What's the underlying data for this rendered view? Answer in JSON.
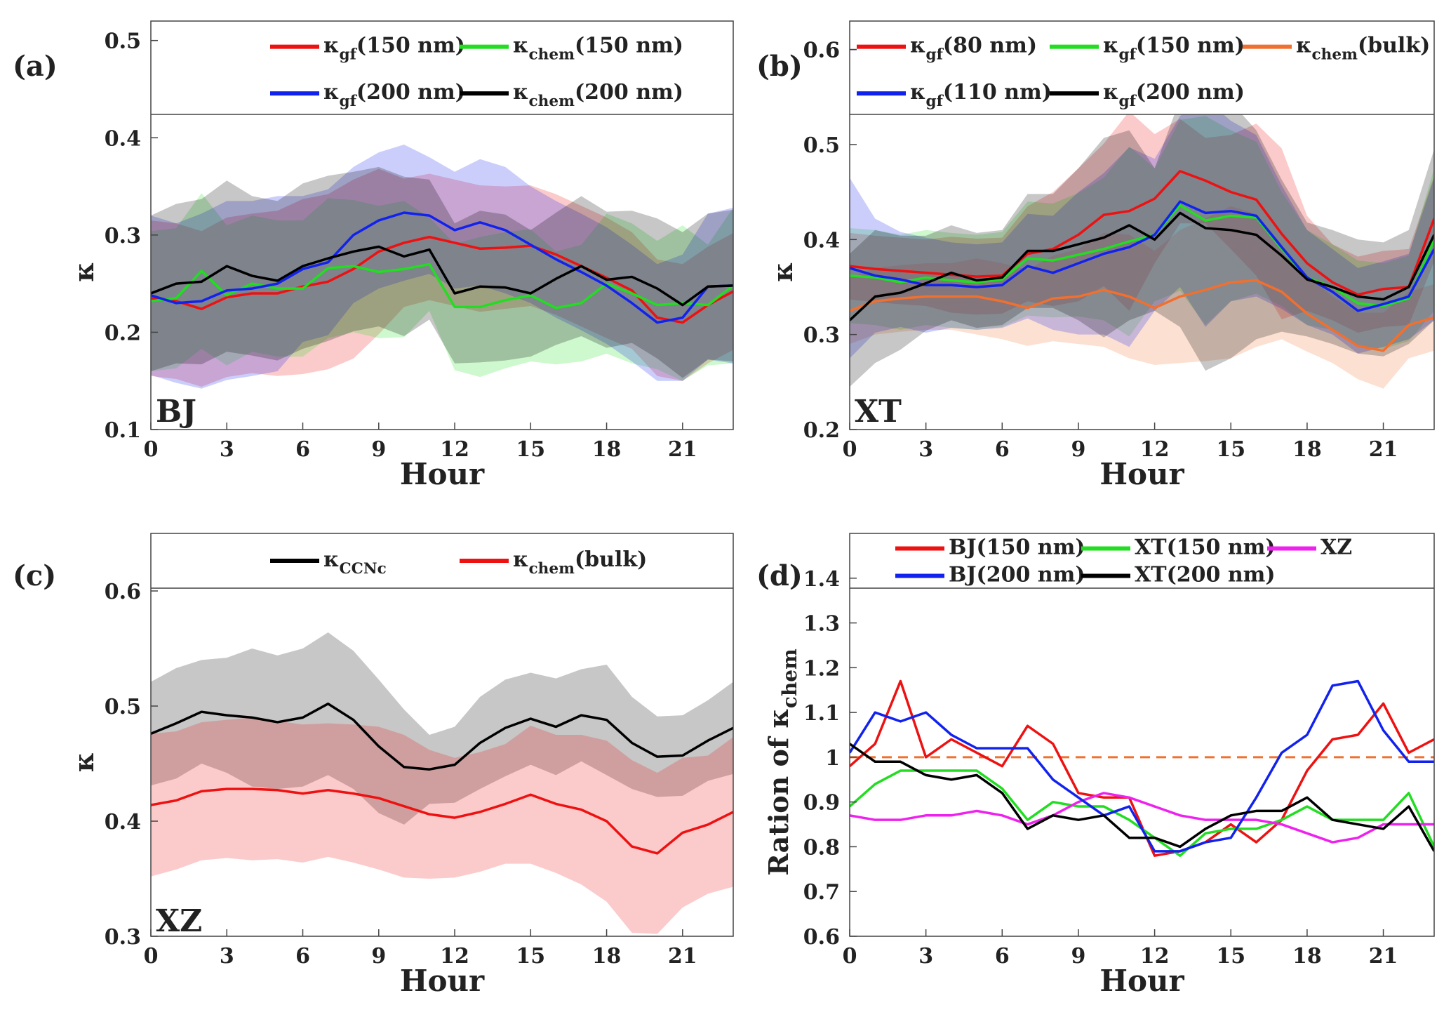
{
  "chart_data": [
    {
      "id": "a",
      "panel_label": "(a)",
      "site_label": "BJ",
      "type": "line",
      "xlabel": "Hour",
      "ylabel": "κ",
      "xlim": [
        0,
        23
      ],
      "ylim": [
        0.1,
        0.52
      ],
      "xticks": [
        0,
        3,
        6,
        9,
        12,
        15,
        18,
        21
      ],
      "yticks": [
        0.1,
        0.2,
        0.3,
        0.4,
        0.5
      ],
      "legend_ticks": [
        0.5
      ],
      "x": [
        0,
        1,
        2,
        3,
        4,
        5,
        6,
        7,
        8,
        9,
        10,
        11,
        12,
        13,
        14,
        15,
        16,
        17,
        18,
        19,
        20,
        21,
        22,
        23
      ],
      "series": [
        {
          "name_base": "κ",
          "name_sub": "gf",
          "name_rest": "(150 nm)",
          "color": "#ee1111",
          "values": [
            0.235,
            0.232,
            0.224,
            0.236,
            0.24,
            0.24,
            0.247,
            0.252,
            0.265,
            0.283,
            0.292,
            0.298,
            0.292,
            0.286,
            0.287,
            0.289,
            0.28,
            0.268,
            0.256,
            0.243,
            0.215,
            0.21,
            0.228,
            0.242
          ],
          "band": [
            0.08,
            0.08,
            0.08,
            0.082,
            0.082,
            0.085,
            0.09,
            0.09,
            0.092,
            0.085,
            0.066,
            0.065,
            0.065,
            0.065,
            0.063,
            0.062,
            0.062,
            0.062,
            0.062,
            0.06,
            0.06,
            0.06,
            0.06,
            0.06
          ]
        },
        {
          "name_base": "κ",
          "name_sub": "chem",
          "name_rest": "(150 nm)",
          "color": "#22dd22",
          "values": [
            0.232,
            0.235,
            0.263,
            0.238,
            0.25,
            0.245,
            0.245,
            0.266,
            0.268,
            0.262,
            0.265,
            0.27,
            0.226,
            0.226,
            0.233,
            0.238,
            0.225,
            0.23,
            0.25,
            0.24,
            0.228,
            0.23,
            0.228,
            0.248
          ],
          "band": [
            0.072,
            0.072,
            0.08,
            0.072,
            0.07,
            0.07,
            0.07,
            0.072,
            0.068,
            0.068,
            0.07,
            0.048,
            0.065,
            0.072,
            0.07,
            0.068,
            0.058,
            0.06,
            0.072,
            0.072,
            0.066,
            0.08,
            0.062,
            0.08
          ]
        },
        {
          "name_base": "κ",
          "name_sub": "gf",
          "name_rest": "(200 nm)",
          "color": "#1122ee",
          "values": [
            0.238,
            0.23,
            0.232,
            0.243,
            0.245,
            0.25,
            0.265,
            0.272,
            0.3,
            0.315,
            0.323,
            0.32,
            0.305,
            0.313,
            0.305,
            0.29,
            0.275,
            0.262,
            0.248,
            0.23,
            0.21,
            0.215,
            0.247,
            0.248
          ],
          "band": [
            0.082,
            0.082,
            0.09,
            0.092,
            0.09,
            0.09,
            0.075,
            0.075,
            0.07,
            0.07,
            0.07,
            0.06,
            0.06,
            0.065,
            0.065,
            0.06,
            0.06,
            0.06,
            0.06,
            0.06,
            0.06,
            0.065,
            0.075,
            0.08
          ]
        },
        {
          "name_base": "κ",
          "name_sub": "chem",
          "name_rest": "(200 nm)",
          "color": "#000000",
          "values": [
            0.24,
            0.25,
            0.252,
            0.268,
            0.258,
            0.253,
            0.268,
            0.276,
            0.283,
            0.288,
            0.278,
            0.285,
            0.24,
            0.247,
            0.246,
            0.24,
            0.255,
            0.268,
            0.254,
            0.257,
            0.245,
            0.228,
            0.247,
            0.248
          ],
          "band": [
            0.08,
            0.082,
            0.085,
            0.088,
            0.082,
            0.082,
            0.085,
            0.085,
            0.082,
            0.082,
            0.082,
            0.072,
            0.072,
            0.078,
            0.075,
            0.065,
            0.068,
            0.072,
            0.07,
            0.068,
            0.072,
            0.075,
            0.075,
            0.078
          ]
        }
      ],
      "legend_rows": [
        [
          0,
          1
        ],
        [
          2,
          3
        ]
      ]
    },
    {
      "id": "b",
      "panel_label": "(b)",
      "site_label": "XT",
      "type": "line",
      "xlabel": "Hour",
      "ylabel": "κ",
      "xlim": [
        0,
        23
      ],
      "ylim": [
        0.2,
        0.63
      ],
      "xticks": [
        0,
        3,
        6,
        9,
        12,
        15,
        18,
        21
      ],
      "yticks": [
        0.2,
        0.3,
        0.4,
        0.5,
        0.6
      ],
      "legend_ticks": [
        0.6
      ],
      "x": [
        0,
        1,
        2,
        3,
        4,
        5,
        6,
        7,
        8,
        9,
        10,
        11,
        12,
        13,
        14,
        15,
        16,
        17,
        18,
        19,
        20,
        21,
        22,
        23
      ],
      "series": [
        {
          "name_base": "κ",
          "name_sub": "gf",
          "name_rest": "(80 nm)",
          "color": "#ee1111",
          "values": [
            0.372,
            0.369,
            0.367,
            0.365,
            0.363,
            0.361,
            0.362,
            0.385,
            0.39,
            0.405,
            0.426,
            0.43,
            0.443,
            0.472,
            0.462,
            0.45,
            0.442,
            0.406,
            0.375,
            0.355,
            0.342,
            0.348,
            0.35,
            0.422
          ],
          "band": [
            0.035,
            0.035,
            0.035,
            0.035,
            0.04,
            0.04,
            0.04,
            0.05,
            0.06,
            0.07,
            0.075,
            0.105,
            0.068,
            0.055,
            0.045,
            0.06,
            0.08,
            0.09,
            0.05,
            0.04,
            0.04,
            0.04,
            0.04,
            0.045
          ]
        },
        {
          "name_base": "κ",
          "name_sub": "gf",
          "name_rest": "(150 nm)",
          "color": "#22dd22",
          "values": [
            0.362,
            0.36,
            0.355,
            0.36,
            0.357,
            0.355,
            0.358,
            0.38,
            0.378,
            0.384,
            0.39,
            0.398,
            0.405,
            0.436,
            0.42,
            0.425,
            0.423,
            0.39,
            0.36,
            0.35,
            0.333,
            0.33,
            0.338,
            0.4
          ],
          "band": [
            0.05,
            0.05,
            0.05,
            0.05,
            0.05,
            0.05,
            0.05,
            0.06,
            0.06,
            0.065,
            0.075,
            0.1,
            0.07,
            0.09,
            0.11,
            0.09,
            0.08,
            0.06,
            0.05,
            0.045,
            0.045,
            0.045,
            0.045,
            0.075
          ]
        },
        {
          "name_base": "κ",
          "name_sub": "chem",
          "name_rest": "(bulk)",
          "color": "#f07030",
          "values": [
            0.325,
            0.335,
            0.338,
            0.34,
            0.34,
            0.34,
            0.335,
            0.328,
            0.338,
            0.34,
            0.347,
            0.34,
            0.328,
            0.34,
            0.347,
            0.355,
            0.357,
            0.345,
            0.322,
            0.305,
            0.288,
            0.283,
            0.31,
            0.318
          ],
          "band": [
            0.035,
            0.035,
            0.035,
            0.035,
            0.035,
            0.04,
            0.04,
            0.04,
            0.045,
            0.05,
            0.06,
            0.065,
            0.06,
            0.07,
            0.075,
            0.08,
            0.07,
            0.05,
            0.04,
            0.035,
            0.035,
            0.04,
            0.035,
            0.035
          ]
        },
        {
          "name_base": "κ",
          "name_sub": "gf",
          "name_rest": "(110 nm)",
          "color": "#1122ee",
          "values": [
            0.37,
            0.362,
            0.358,
            0.352,
            0.352,
            0.35,
            0.352,
            0.372,
            0.365,
            0.375,
            0.385,
            0.392,
            0.405,
            0.44,
            0.428,
            0.43,
            0.425,
            0.392,
            0.36,
            0.345,
            0.325,
            0.332,
            0.34,
            0.39
          ],
          "band": [
            0.095,
            0.06,
            0.05,
            0.05,
            0.045,
            0.045,
            0.045,
            0.055,
            0.06,
            0.075,
            0.085,
            0.105,
            0.08,
            0.09,
            0.12,
            0.095,
            0.085,
            0.065,
            0.05,
            0.045,
            0.045,
            0.045,
            0.045,
            0.075
          ]
        },
        {
          "name_base": "κ",
          "name_sub": "gf",
          "name_rest": "(200 nm)",
          "color": "#000000",
          "values": [
            0.315,
            0.34,
            0.344,
            0.354,
            0.365,
            0.357,
            0.36,
            0.388,
            0.388,
            0.395,
            0.402,
            0.415,
            0.4,
            0.428,
            0.412,
            0.41,
            0.405,
            0.383,
            0.358,
            0.35,
            0.34,
            0.337,
            0.35,
            0.405
          ],
          "band": [
            0.07,
            0.07,
            0.06,
            0.05,
            0.05,
            0.05,
            0.05,
            0.06,
            0.06,
            0.08,
            0.105,
            0.1,
            0.075,
            0.12,
            0.15,
            0.135,
            0.11,
            0.08,
            0.06,
            0.06,
            0.06,
            0.06,
            0.06,
            0.09
          ]
        }
      ],
      "legend_rows": [
        [
          0,
          1,
          2
        ],
        [
          3,
          4
        ]
      ]
    },
    {
      "id": "c",
      "panel_label": "(c)",
      "site_label": "XZ",
      "type": "line",
      "xlabel": "Hour",
      "ylabel": "κ",
      "xlim": [
        0,
        23
      ],
      "ylim": [
        0.3,
        0.65
      ],
      "xticks": [
        0,
        3,
        6,
        9,
        12,
        15,
        18,
        21
      ],
      "yticks": [
        0.3,
        0.4,
        0.5,
        0.6
      ],
      "legend_ticks": [],
      "x": [
        0,
        1,
        2,
        3,
        4,
        5,
        6,
        7,
        8,
        9,
        10,
        11,
        12,
        13,
        14,
        15,
        16,
        17,
        18,
        19,
        20,
        21,
        22,
        23
      ],
      "series": [
        {
          "name_base": "κ",
          "name_sub": "CCNc",
          "name_rest": "",
          "color": "#000000",
          "values": [
            0.476,
            0.485,
            0.495,
            0.492,
            0.49,
            0.486,
            0.49,
            0.502,
            0.488,
            0.465,
            0.447,
            0.445,
            0.449,
            0.468,
            0.481,
            0.489,
            0.482,
            0.492,
            0.488,
            0.468,
            0.456,
            0.457,
            0.47,
            0.481
          ],
          "band": [
            0.045,
            0.048,
            0.045,
            0.05,
            0.06,
            0.058,
            0.06,
            0.062,
            0.06,
            0.058,
            0.05,
            0.03,
            0.033,
            0.04,
            0.042,
            0.04,
            0.042,
            0.04,
            0.048,
            0.04,
            0.035,
            0.035,
            0.035,
            0.04
          ]
        },
        {
          "name_base": "κ",
          "name_sub": "chem",
          "name_rest": "(bulk)",
          "color": "#ee1111",
          "values": [
            0.414,
            0.418,
            0.426,
            0.428,
            0.428,
            0.427,
            0.424,
            0.427,
            0.424,
            0.42,
            0.413,
            0.406,
            0.403,
            0.408,
            0.415,
            0.423,
            0.415,
            0.41,
            0.4,
            0.378,
            0.372,
            0.39,
            0.397,
            0.408
          ],
          "band": [
            0.062,
            0.06,
            0.06,
            0.06,
            0.062,
            0.06,
            0.06,
            0.058,
            0.06,
            0.062,
            0.062,
            0.056,
            0.052,
            0.052,
            0.052,
            0.06,
            0.06,
            0.065,
            0.07,
            0.075,
            0.07,
            0.065,
            0.06,
            0.065
          ]
        }
      ],
      "legend_rows": [
        [
          0,
          1
        ]
      ]
    },
    {
      "id": "d",
      "panel_label": "(d)",
      "site_label": "",
      "type": "line",
      "xlabel": "Hour",
      "ylabel_prefix": "Ration of ",
      "ylabel_base": "κ",
      "ylabel_sub": "chem",
      "xlim": [
        0,
        23
      ],
      "ylim": [
        0.6,
        1.5
      ],
      "xticks": [
        0,
        3,
        6,
        9,
        12,
        15,
        18,
        21
      ],
      "yticks": [
        0.6,
        0.7,
        0.8,
        0.9,
        1.0,
        1.1,
        1.2,
        1.3
      ],
      "ytick_labels": [
        "0.6",
        "0.7",
        "0.8",
        "0.9",
        "1",
        "1.1",
        "1.2",
        "1.3"
      ],
      "legend_ticks": [
        1.4
      ],
      "reference_line": {
        "y": 1.0,
        "color": "#f07030"
      },
      "x": [
        0,
        1,
        2,
        3,
        4,
        5,
        6,
        7,
        8,
        9,
        10,
        11,
        12,
        13,
        14,
        15,
        16,
        17,
        18,
        19,
        20,
        21,
        22,
        23
      ],
      "series": [
        {
          "name_base": "BJ(150 nm)",
          "name_sub": "",
          "name_rest": "",
          "color": "#ee1111",
          "values": [
            0.98,
            1.03,
            1.17,
            1.0,
            1.04,
            1.01,
            0.98,
            1.07,
            1.03,
            0.92,
            0.91,
            0.91,
            0.78,
            0.79,
            0.81,
            0.85,
            0.81,
            0.86,
            0.97,
            1.04,
            1.05,
            1.12,
            1.01,
            1.04
          ]
        },
        {
          "name_base": "XT(150 nm)",
          "name_sub": "",
          "name_rest": "",
          "color": "#22dd22",
          "values": [
            0.89,
            0.94,
            0.97,
            0.97,
            0.97,
            0.97,
            0.93,
            0.86,
            0.9,
            0.89,
            0.89,
            0.86,
            0.82,
            0.78,
            0.83,
            0.84,
            0.84,
            0.86,
            0.89,
            0.86,
            0.86,
            0.86,
            0.92,
            0.8
          ]
        },
        {
          "name_base": "XZ",
          "name_sub": "",
          "name_rest": "",
          "color": "#ee22ee",
          "values": [
            0.87,
            0.86,
            0.86,
            0.87,
            0.87,
            0.88,
            0.87,
            0.85,
            0.87,
            0.9,
            0.92,
            0.91,
            0.89,
            0.87,
            0.86,
            0.86,
            0.86,
            0.85,
            0.83,
            0.81,
            0.82,
            0.85,
            0.85,
            0.85
          ]
        },
        {
          "name_base": "BJ(200 nm)",
          "name_sub": "",
          "name_rest": "",
          "color": "#1122ee",
          "values": [
            1.01,
            1.1,
            1.08,
            1.1,
            1.05,
            1.02,
            1.02,
            1.02,
            0.95,
            0.91,
            0.87,
            0.89,
            0.79,
            0.79,
            0.81,
            0.82,
            0.91,
            1.01,
            1.05,
            1.16,
            1.17,
            1.06,
            0.99,
            0.99
          ]
        },
        {
          "name_base": "XT(200 nm)",
          "name_sub": "",
          "name_rest": "",
          "color": "#000000",
          "values": [
            1.03,
            0.99,
            0.99,
            0.96,
            0.95,
            0.96,
            0.92,
            0.84,
            0.87,
            0.86,
            0.87,
            0.82,
            0.82,
            0.8,
            0.84,
            0.87,
            0.88,
            0.88,
            0.91,
            0.86,
            0.85,
            0.84,
            0.89,
            0.79
          ]
        }
      ],
      "legend_rows": [
        [
          0,
          1,
          2
        ],
        [
          3,
          4
        ]
      ]
    }
  ]
}
